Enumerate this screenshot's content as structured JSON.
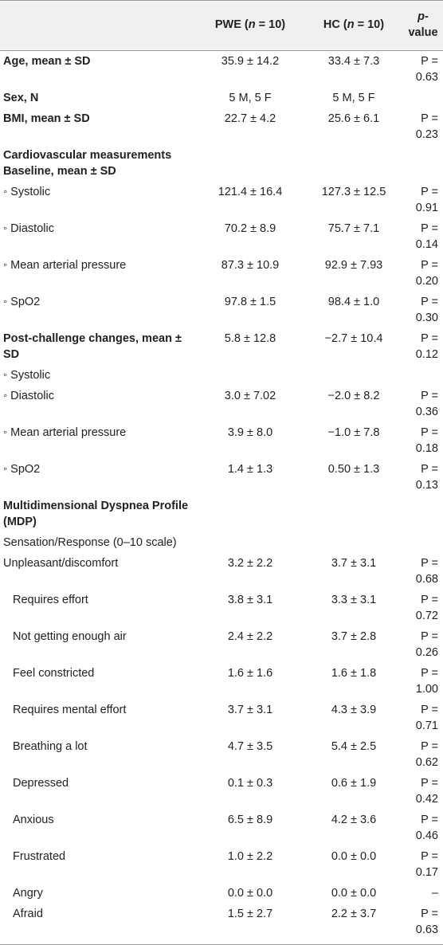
{
  "header": {
    "col0": "",
    "col1_pre": "PWE (",
    "col1_n": "n",
    "col1_post": " = 10)",
    "col2_pre": "HC (",
    "col2_n": "n",
    "col2_post": " = 10)",
    "col3_p": "p",
    "col3_post": "-value"
  },
  "rows": [
    {
      "label": "Age, mean ± SD",
      "pwe": "35.9 ± 14.2",
      "hc": "33.4 ± 7.3",
      "p": "P = 0.63",
      "style": "bold"
    },
    {
      "label": "Sex, N",
      "pwe": "5 M, 5 F",
      "hc": "5 M, 5 F",
      "p": "",
      "style": "bold"
    },
    {
      "label": "BMI, mean ± SD",
      "pwe": "22.7 ± 4.2",
      "hc": "25.6 ± 6.1",
      "p": "P = 0.23",
      "style": "bold"
    },
    {
      "label": "Cardiovascular measurements Baseline, mean ± SD",
      "pwe": "",
      "hc": "",
      "p": "",
      "style": "bold"
    },
    {
      "label": "Systolic",
      "pwe": "121.4 ± 16.4",
      "hc": "127.3 ± 12.5",
      "p": "P = 0.91",
      "style": "bullet"
    },
    {
      "label": "Diastolic",
      "pwe": "70.2 ± 8.9",
      "hc": "75.7 ± 7.1",
      "p": "P = 0.14",
      "style": "bullet"
    },
    {
      "label": "Mean arterial pressure",
      "pwe": "87.3 ± 10.9",
      "hc": "92.9 ± 7.93",
      "p": "P = 0.20",
      "style": "bullet"
    },
    {
      "label": "SpO2",
      "pwe": "97.8 ± 1.5",
      "hc": "98.4 ± 1.0",
      "p": "P = 0.30",
      "style": "bullet"
    },
    {
      "label": "Post-challenge changes, mean ± SD",
      "pwe": "5.8 ± 12.8",
      "hc": "−2.7 ± 10.4",
      "p": "P = 0.12",
      "style": "bold"
    },
    {
      "label": "Systolic",
      "pwe": "",
      "hc": "",
      "p": "",
      "style": "bullet"
    },
    {
      "label": "Diastolic",
      "pwe": "3.0 ± 7.02",
      "hc": "−2.0 ± 8.2",
      "p": "P = 0.36",
      "style": "bullet"
    },
    {
      "label": "Mean arterial pressure",
      "pwe": "3.9 ± 8.0",
      "hc": "−1.0 ± 7.8",
      "p": "P = 0.18",
      "style": "bullet"
    },
    {
      "label": "SpO2",
      "pwe": "1.4 ± 1.3",
      "hc": "0.50 ± 1.3",
      "p": "P = 0.13",
      "style": "bullet"
    },
    {
      "label": "Multidimensional Dyspnea Profile (MDP)",
      "pwe": "",
      "hc": "",
      "p": "",
      "style": "bold"
    },
    {
      "label": "Sensation/Response (0–10 scale)",
      "pwe": "",
      "hc": "",
      "p": "",
      "style": "plain"
    },
    {
      "label": "Unpleasant/discomfort",
      "pwe": "3.2 ± 2.2",
      "hc": "3.7 ± 3.1",
      "p": "P = 0.68",
      "style": "plain"
    },
    {
      "label": "Requires effort",
      "pwe": "3.8 ± 3.1",
      "hc": "3.3 ± 3.1",
      "p": "P = 0.72",
      "style": "indent"
    },
    {
      "label": "Not getting enough air",
      "pwe": "2.4 ± 2.2",
      "hc": "3.7 ± 2.8",
      "p": "P = 0.26",
      "style": "indent"
    },
    {
      "label": "Feel constricted",
      "pwe": "1.6 ± 1.6",
      "hc": "1.6 ± 1.8",
      "p": "P = 1.00",
      "style": "indent"
    },
    {
      "label": "Requires mental effort",
      "pwe": "3.7 ± 3.1",
      "hc": "4.3 ± 3.9",
      "p": "P = 0.71",
      "style": "indent"
    },
    {
      "label": "Breathing a lot",
      "pwe": "4.7 ± 3.5",
      "hc": "5.4 ± 2.5",
      "p": "P = 0.62",
      "style": "indent"
    },
    {
      "label": "Depressed",
      "pwe": "0.1 ± 0.3",
      "hc": "0.6 ± 1.9",
      "p": "P = 0.42",
      "style": "indent"
    },
    {
      "label": "Anxious",
      "pwe": "6.5 ± 8.9",
      "hc": "4.2 ± 3.6",
      "p": "P = 0.46",
      "style": "indent"
    },
    {
      "label": "Frustrated",
      "pwe": "1.0 ± 2.2",
      "hc": "0.0 ± 0.0",
      "p": "P = 0.17",
      "style": "indent"
    },
    {
      "label": "Angry",
      "pwe": "0.0 ± 0.0",
      "hc": "0.0 ± 0.0",
      "p": "–",
      "style": "indent"
    },
    {
      "label": "Afraid",
      "pwe": "1.5 ± 2.7",
      "hc": "2.2 ± 3.7",
      "p": "P = 0.63",
      "style": "indent"
    }
  ]
}
